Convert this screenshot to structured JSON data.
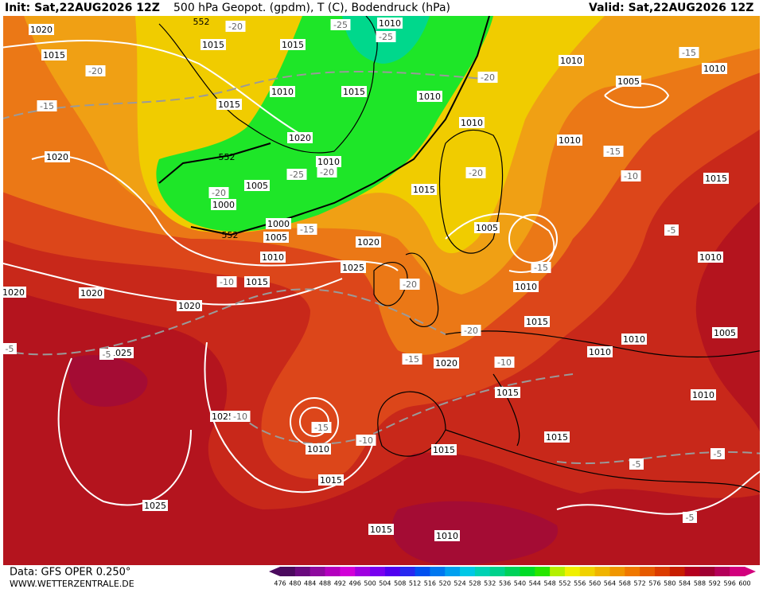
{
  "header": {
    "init": "Init: Sat,22AUG2026 12Z",
    "title": "500 hPa Geopot. (gpdm), T (C), Bodendruck (hPa)",
    "valid": "Valid: Sat,22AUG2026 12Z"
  },
  "footer": {
    "source": "Data: GFS OPER 0.250°",
    "website": "WWW.WETTERZENTRALE.DE"
  },
  "colorbar": {
    "levels": [
      476,
      480,
      484,
      488,
      492,
      496,
      500,
      504,
      508,
      512,
      516,
      520,
      524,
      528,
      532,
      536,
      540,
      544,
      548,
      552,
      556,
      560,
      564,
      568,
      572,
      576,
      580,
      584,
      588,
      592,
      596,
      600
    ],
    "colors": [
      "#4b0a5e",
      "#6a0a7e",
      "#8e0a9e",
      "#b400be",
      "#d200d8",
      "#a000e0",
      "#7800f0",
      "#5000f0",
      "#2828f0",
      "#0050f0",
      "#0078f0",
      "#00a0f0",
      "#00c8e6",
      "#00d2b4",
      "#00d28c",
      "#00d25a",
      "#00dc28",
      "#28e600",
      "#b4f000",
      "#f0f000",
      "#f0d200",
      "#f0b400",
      "#f09600",
      "#f07800",
      "#e65a00",
      "#dc3c00",
      "#c81e00",
      "#b4001e",
      "#a00032",
      "#b4005a",
      "#d2007d"
    ]
  },
  "map": {
    "pressure_labels": [
      "1020",
      "1015",
      "1015",
      "1015",
      "1010",
      "1010",
      "1005",
      "1010",
      "1015",
      "1010",
      "1015",
      "1010",
      "1010",
      "1010",
      "1020",
      "1010",
      "1020",
      "1015",
      "1015",
      "1005",
      "1000",
      "1000",
      "1005",
      "1005",
      "1020",
      "1010",
      "1025",
      "1015",
      "1010",
      "1010",
      "1020",
      "1020",
      "1020",
      "1015",
      "1010",
      "1010",
      "1005",
      "1025",
      "1020",
      "1015",
      "1010",
      "1025",
      "1010",
      "1015",
      "1015",
      "1015",
      "1025",
      "1015",
      "1010"
    ],
    "temperature_labels": [
      "-20",
      "-25",
      "-25",
      "-20",
      "-15",
      "-20",
      "-15",
      "-15",
      "-10",
      "-25",
      "-20",
      "-20",
      "-20",
      "-15",
      "-5",
      "-15",
      "-10",
      "-20",
      "-20",
      "-15",
      "-10",
      "-5",
      "-5",
      "-15",
      "-10",
      "-10",
      "-5",
      "-5",
      "-5"
    ],
    "height_labels": [
      "552",
      "552",
      "552"
    ]
  }
}
